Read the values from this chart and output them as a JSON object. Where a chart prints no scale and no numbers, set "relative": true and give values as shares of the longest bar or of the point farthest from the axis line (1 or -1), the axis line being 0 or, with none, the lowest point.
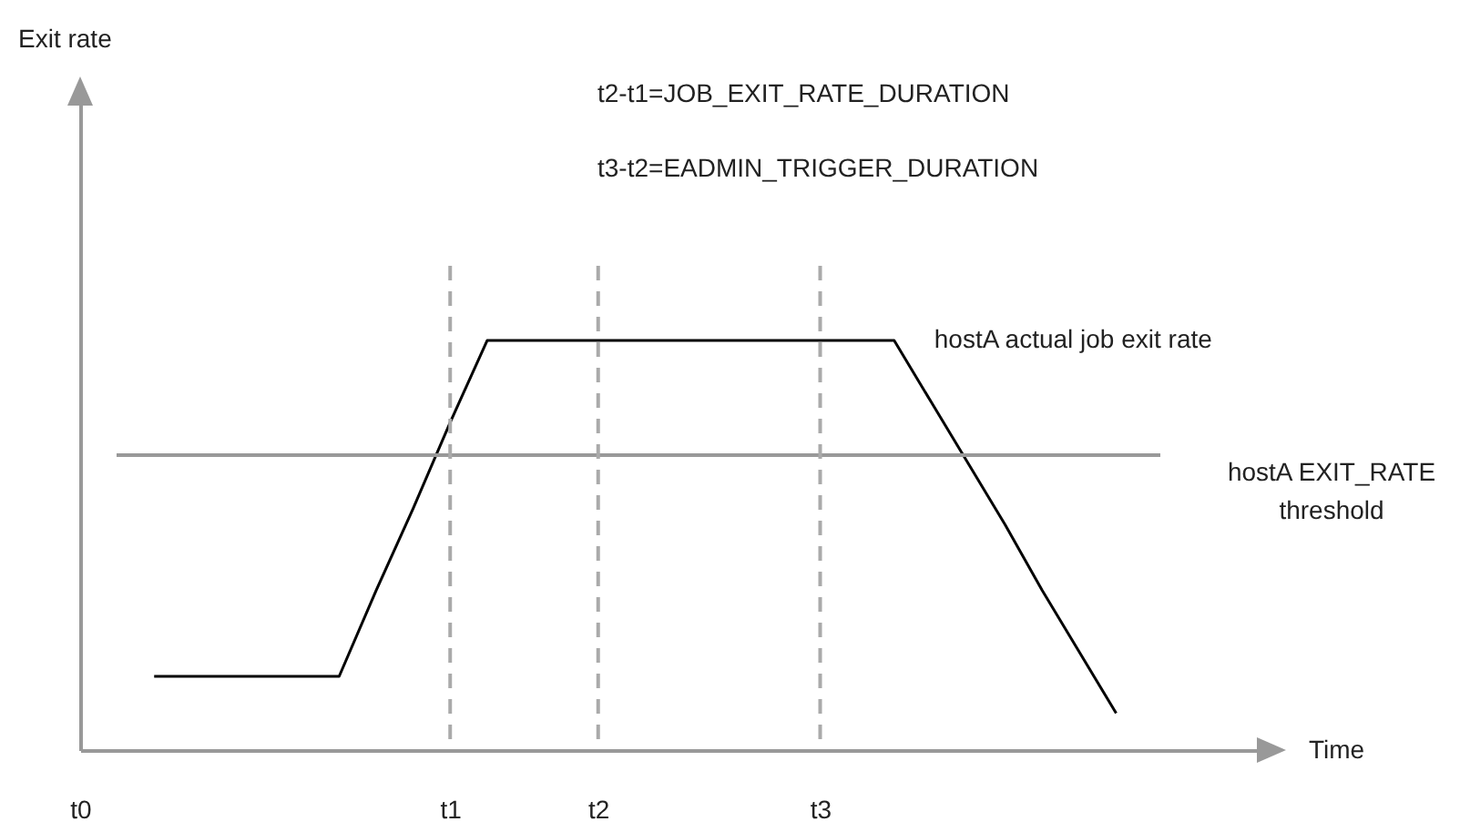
{
  "chart_data": {
    "type": "line",
    "relative": true,
    "xlabel": "Time",
    "categories": [
      "t0",
      null,
      null,
      null,
      null,
      null,
      null,
      null,
      null,
      null,
      "t1",
      null,
      null,
      null,
      "t2",
      null,
      null,
      null,
      null,
      null,
      "t3",
      null,
      null,
      null,
      null,
      null,
      null,
      null,
      null,
      null,
      null,
      null,
      null
    ],
    "series": [
      {
        "name": "hostA actual job exit rate",
        "color": "#000000",
        "values": [
          null,
          null,
          0.18,
          0.18,
          0.18,
          0.18,
          0.18,
          0.18,
          0.39,
          0.59,
          0.8,
          1,
          1,
          1,
          1,
          1,
          1,
          1,
          1,
          1,
          1,
          1,
          1,
          0.85,
          0.7,
          0.55,
          0.39,
          0.24,
          0.09,
          null,
          null,
          null,
          null
        ]
      }
    ],
    "ref_lines": [
      {
        "axis": "y",
        "value": 0.72,
        "label": "hostA EXIT_RATE threshold",
        "color": "#999999"
      },
      {
        "axis": "x",
        "value": "t1",
        "color": "#aaaaaa",
        "line_style": "dashed"
      },
      {
        "axis": "x",
        "value": "t2",
        "color": "#aaaaaa",
        "line_style": "dashed"
      },
      {
        "axis": "x",
        "value": "t3",
        "color": "#aaaaaa",
        "line_style": "dashed"
      }
    ],
    "annotations": [
      "Exit rate",
      "t2-t1=JOB_EXIT_RATE_DURATION",
      "t3-t2=EADMIN_TRIGGER_DURATION"
    ]
  }
}
